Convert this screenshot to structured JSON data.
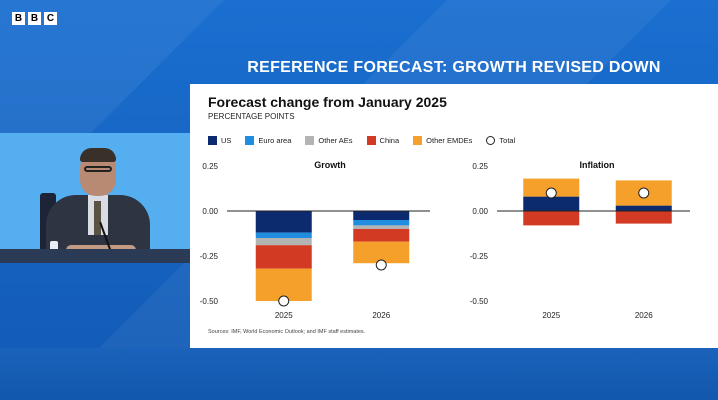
{
  "brand": {
    "letters": [
      "B",
      "B",
      "C"
    ]
  },
  "banner": {
    "text": "REFERENCE FORECAST: GROWTH REVISED DOWN"
  },
  "slide": {
    "title": "Forecast change from January 2025",
    "subtitle": "PERCENTAGE POINTS",
    "source": "Sources: IMF, World Economic Outlook; and IMF staff estimates."
  },
  "legend": [
    {
      "label": "US",
      "color": "#0c2a6e"
    },
    {
      "label": "Euro area",
      "color": "#1f8ee0"
    },
    {
      "label": "Other AEs",
      "color": "#b3b3b3"
    },
    {
      "label": "China",
      "color": "#d23a24"
    },
    {
      "label": "Other EMDEs",
      "color": "#f5a02a"
    },
    {
      "label": "Total",
      "color": "#ffffff"
    }
  ],
  "chart_data": [
    {
      "type": "bar",
      "stacked": true,
      "title": "Growth",
      "categories": [
        "2025",
        "2026"
      ],
      "ylim": [
        -0.5,
        0.25
      ],
      "yticks": [
        "0.25",
        "0.00",
        "-0.25",
        "-0.50"
      ],
      "series": [
        {
          "name": "US",
          "values": [
            -0.12,
            -0.05
          ]
        },
        {
          "name": "Euro area",
          "values": [
            -0.03,
            -0.03
          ]
        },
        {
          "name": "Other AEs",
          "values": [
            -0.04,
            -0.02
          ]
        },
        {
          "name": "China",
          "values": [
            -0.13,
            -0.07
          ]
        },
        {
          "name": "Other EMDEs",
          "values": [
            -0.18,
            -0.12
          ]
        }
      ],
      "total": [
        -0.5,
        -0.3
      ]
    },
    {
      "type": "bar",
      "stacked": true,
      "title": "Inflation",
      "categories": [
        "2025",
        "2026"
      ],
      "ylim": [
        -0.5,
        0.25
      ],
      "yticks": [
        "0.25",
        "0.00",
        "-0.25",
        "-0.50"
      ],
      "series": [
        {
          "name": "US",
          "values": [
            0.08,
            0.03
          ]
        },
        {
          "name": "Euro area",
          "values": [
            0.0,
            0.0
          ]
        },
        {
          "name": "Other AEs",
          "values": [
            0.0,
            0.0
          ]
        },
        {
          "name": "China",
          "values": [
            -0.08,
            -0.07
          ]
        },
        {
          "name": "Other EMDEs",
          "values": [
            0.1,
            0.14
          ]
        }
      ],
      "total": [
        0.1,
        0.1
      ]
    }
  ]
}
